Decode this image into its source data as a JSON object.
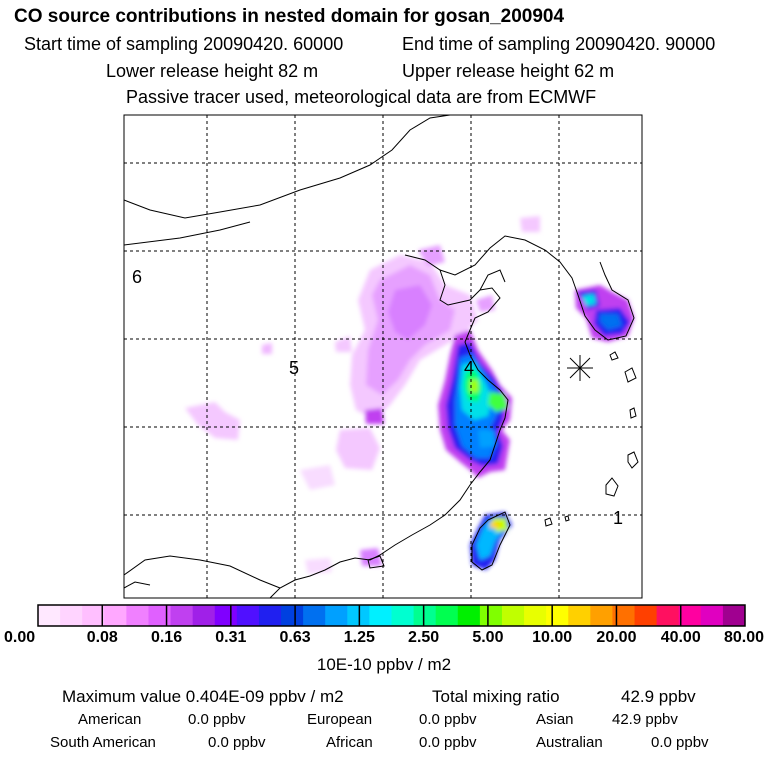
{
  "header": {
    "title": "CO  source contributions in nested domain for gosan_200904",
    "start_label": "Start time of sampling 20090420. 60000",
    "end_label": "End time of sampling 20090420. 90000",
    "lower_label": "Lower release height   82 m",
    "upper_label": "Upper release height   62 m",
    "note": "Passive tracer used, meteorological data are from ECMWF"
  },
  "map": {
    "region_labels": [
      "6",
      "5",
      "4",
      "1"
    ],
    "receptor": "gosan (star marker)"
  },
  "colorbar": {
    "swatches": [
      "#ffe8ff",
      "#ffd4ff",
      "#ffbfff",
      "#ffa8ff",
      "#f080ff",
      "#e060ff",
      "#c040f0",
      "#a020e8",
      "#8000ff",
      "#5010ff",
      "#2020f0",
      "#0040e0",
      "#0070f0",
      "#00a0ff",
      "#00c8ff",
      "#00f0ff",
      "#00ffd0",
      "#00ff90",
      "#00ff50",
      "#00f000",
      "#80ff00",
      "#c0ff00",
      "#e8ff00",
      "#ffff00",
      "#ffd000",
      "#ffa000",
      "#ff7000",
      "#ff4000",
      "#ff1060",
      "#ff00a0",
      "#e000c0",
      "#a00090"
    ],
    "ticks": [
      "0.00",
      "0.08",
      "0.16",
      "0.31",
      "0.63",
      "1.25",
      "2.50",
      "5.00",
      "10.00",
      "20.00",
      "40.00",
      "80.00"
    ],
    "unit": "10E-10 ppbv / m2"
  },
  "stats": {
    "max_label": "Maximum value  0.404E-09 ppbv / m2",
    "total_label": "Total mixing ratio",
    "total_value": "42.9 ppbv",
    "regions": [
      {
        "name": "American",
        "value": "0.0 ppbv"
      },
      {
        "name": "European",
        "value": "0.0 ppbv"
      },
      {
        "name": "Asian",
        "value": "42.9 ppbv"
      },
      {
        "name": "South American",
        "value": "0.0 ppbv"
      },
      {
        "name": "African",
        "value": "0.0 ppbv"
      },
      {
        "name": "Australian",
        "value": "0.0 ppbv"
      }
    ]
  }
}
